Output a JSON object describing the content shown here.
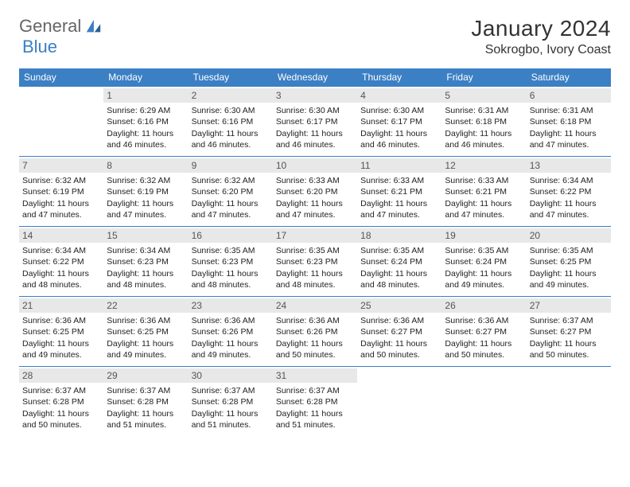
{
  "logo": {
    "part1": "General",
    "part2": "Blue"
  },
  "title": "January 2024",
  "location": "Sokrogbo, Ivory Coast",
  "colors": {
    "header_bg": "#3b7fc4",
    "header_text": "#ffffff",
    "daynum_bg": "#e8e8e8",
    "daynum_text": "#555555",
    "border": "#3b7fc4",
    "body_text": "#222222"
  },
  "days_of_week": [
    "Sunday",
    "Monday",
    "Tuesday",
    "Wednesday",
    "Thursday",
    "Friday",
    "Saturday"
  ],
  "first_weekday_offset": 1,
  "days": [
    {
      "n": 1,
      "sunrise": "6:29 AM",
      "sunset": "6:16 PM",
      "daylight": "11 hours and 46 minutes."
    },
    {
      "n": 2,
      "sunrise": "6:30 AM",
      "sunset": "6:16 PM",
      "daylight": "11 hours and 46 minutes."
    },
    {
      "n": 3,
      "sunrise": "6:30 AM",
      "sunset": "6:17 PM",
      "daylight": "11 hours and 46 minutes."
    },
    {
      "n": 4,
      "sunrise": "6:30 AM",
      "sunset": "6:17 PM",
      "daylight": "11 hours and 46 minutes."
    },
    {
      "n": 5,
      "sunrise": "6:31 AM",
      "sunset": "6:18 PM",
      "daylight": "11 hours and 46 minutes."
    },
    {
      "n": 6,
      "sunrise": "6:31 AM",
      "sunset": "6:18 PM",
      "daylight": "11 hours and 47 minutes."
    },
    {
      "n": 7,
      "sunrise": "6:32 AM",
      "sunset": "6:19 PM",
      "daylight": "11 hours and 47 minutes."
    },
    {
      "n": 8,
      "sunrise": "6:32 AM",
      "sunset": "6:19 PM",
      "daylight": "11 hours and 47 minutes."
    },
    {
      "n": 9,
      "sunrise": "6:32 AM",
      "sunset": "6:20 PM",
      "daylight": "11 hours and 47 minutes."
    },
    {
      "n": 10,
      "sunrise": "6:33 AM",
      "sunset": "6:20 PM",
      "daylight": "11 hours and 47 minutes."
    },
    {
      "n": 11,
      "sunrise": "6:33 AM",
      "sunset": "6:21 PM",
      "daylight": "11 hours and 47 minutes."
    },
    {
      "n": 12,
      "sunrise": "6:33 AM",
      "sunset": "6:21 PM",
      "daylight": "11 hours and 47 minutes."
    },
    {
      "n": 13,
      "sunrise": "6:34 AM",
      "sunset": "6:22 PM",
      "daylight": "11 hours and 47 minutes."
    },
    {
      "n": 14,
      "sunrise": "6:34 AM",
      "sunset": "6:22 PM",
      "daylight": "11 hours and 48 minutes."
    },
    {
      "n": 15,
      "sunrise": "6:34 AM",
      "sunset": "6:23 PM",
      "daylight": "11 hours and 48 minutes."
    },
    {
      "n": 16,
      "sunrise": "6:35 AM",
      "sunset": "6:23 PM",
      "daylight": "11 hours and 48 minutes."
    },
    {
      "n": 17,
      "sunrise": "6:35 AM",
      "sunset": "6:23 PM",
      "daylight": "11 hours and 48 minutes."
    },
    {
      "n": 18,
      "sunrise": "6:35 AM",
      "sunset": "6:24 PM",
      "daylight": "11 hours and 48 minutes."
    },
    {
      "n": 19,
      "sunrise": "6:35 AM",
      "sunset": "6:24 PM",
      "daylight": "11 hours and 49 minutes."
    },
    {
      "n": 20,
      "sunrise": "6:35 AM",
      "sunset": "6:25 PM",
      "daylight": "11 hours and 49 minutes."
    },
    {
      "n": 21,
      "sunrise": "6:36 AM",
      "sunset": "6:25 PM",
      "daylight": "11 hours and 49 minutes."
    },
    {
      "n": 22,
      "sunrise": "6:36 AM",
      "sunset": "6:25 PM",
      "daylight": "11 hours and 49 minutes."
    },
    {
      "n": 23,
      "sunrise": "6:36 AM",
      "sunset": "6:26 PM",
      "daylight": "11 hours and 49 minutes."
    },
    {
      "n": 24,
      "sunrise": "6:36 AM",
      "sunset": "6:26 PM",
      "daylight": "11 hours and 50 minutes."
    },
    {
      "n": 25,
      "sunrise": "6:36 AM",
      "sunset": "6:27 PM",
      "daylight": "11 hours and 50 minutes."
    },
    {
      "n": 26,
      "sunrise": "6:36 AM",
      "sunset": "6:27 PM",
      "daylight": "11 hours and 50 minutes."
    },
    {
      "n": 27,
      "sunrise": "6:37 AM",
      "sunset": "6:27 PM",
      "daylight": "11 hours and 50 minutes."
    },
    {
      "n": 28,
      "sunrise": "6:37 AM",
      "sunset": "6:28 PM",
      "daylight": "11 hours and 50 minutes."
    },
    {
      "n": 29,
      "sunrise": "6:37 AM",
      "sunset": "6:28 PM",
      "daylight": "11 hours and 51 minutes."
    },
    {
      "n": 30,
      "sunrise": "6:37 AM",
      "sunset": "6:28 PM",
      "daylight": "11 hours and 51 minutes."
    },
    {
      "n": 31,
      "sunrise": "6:37 AM",
      "sunset": "6:28 PM",
      "daylight": "11 hours and 51 minutes."
    }
  ],
  "labels": {
    "sunrise": "Sunrise:",
    "sunset": "Sunset:",
    "daylight": "Daylight:"
  }
}
